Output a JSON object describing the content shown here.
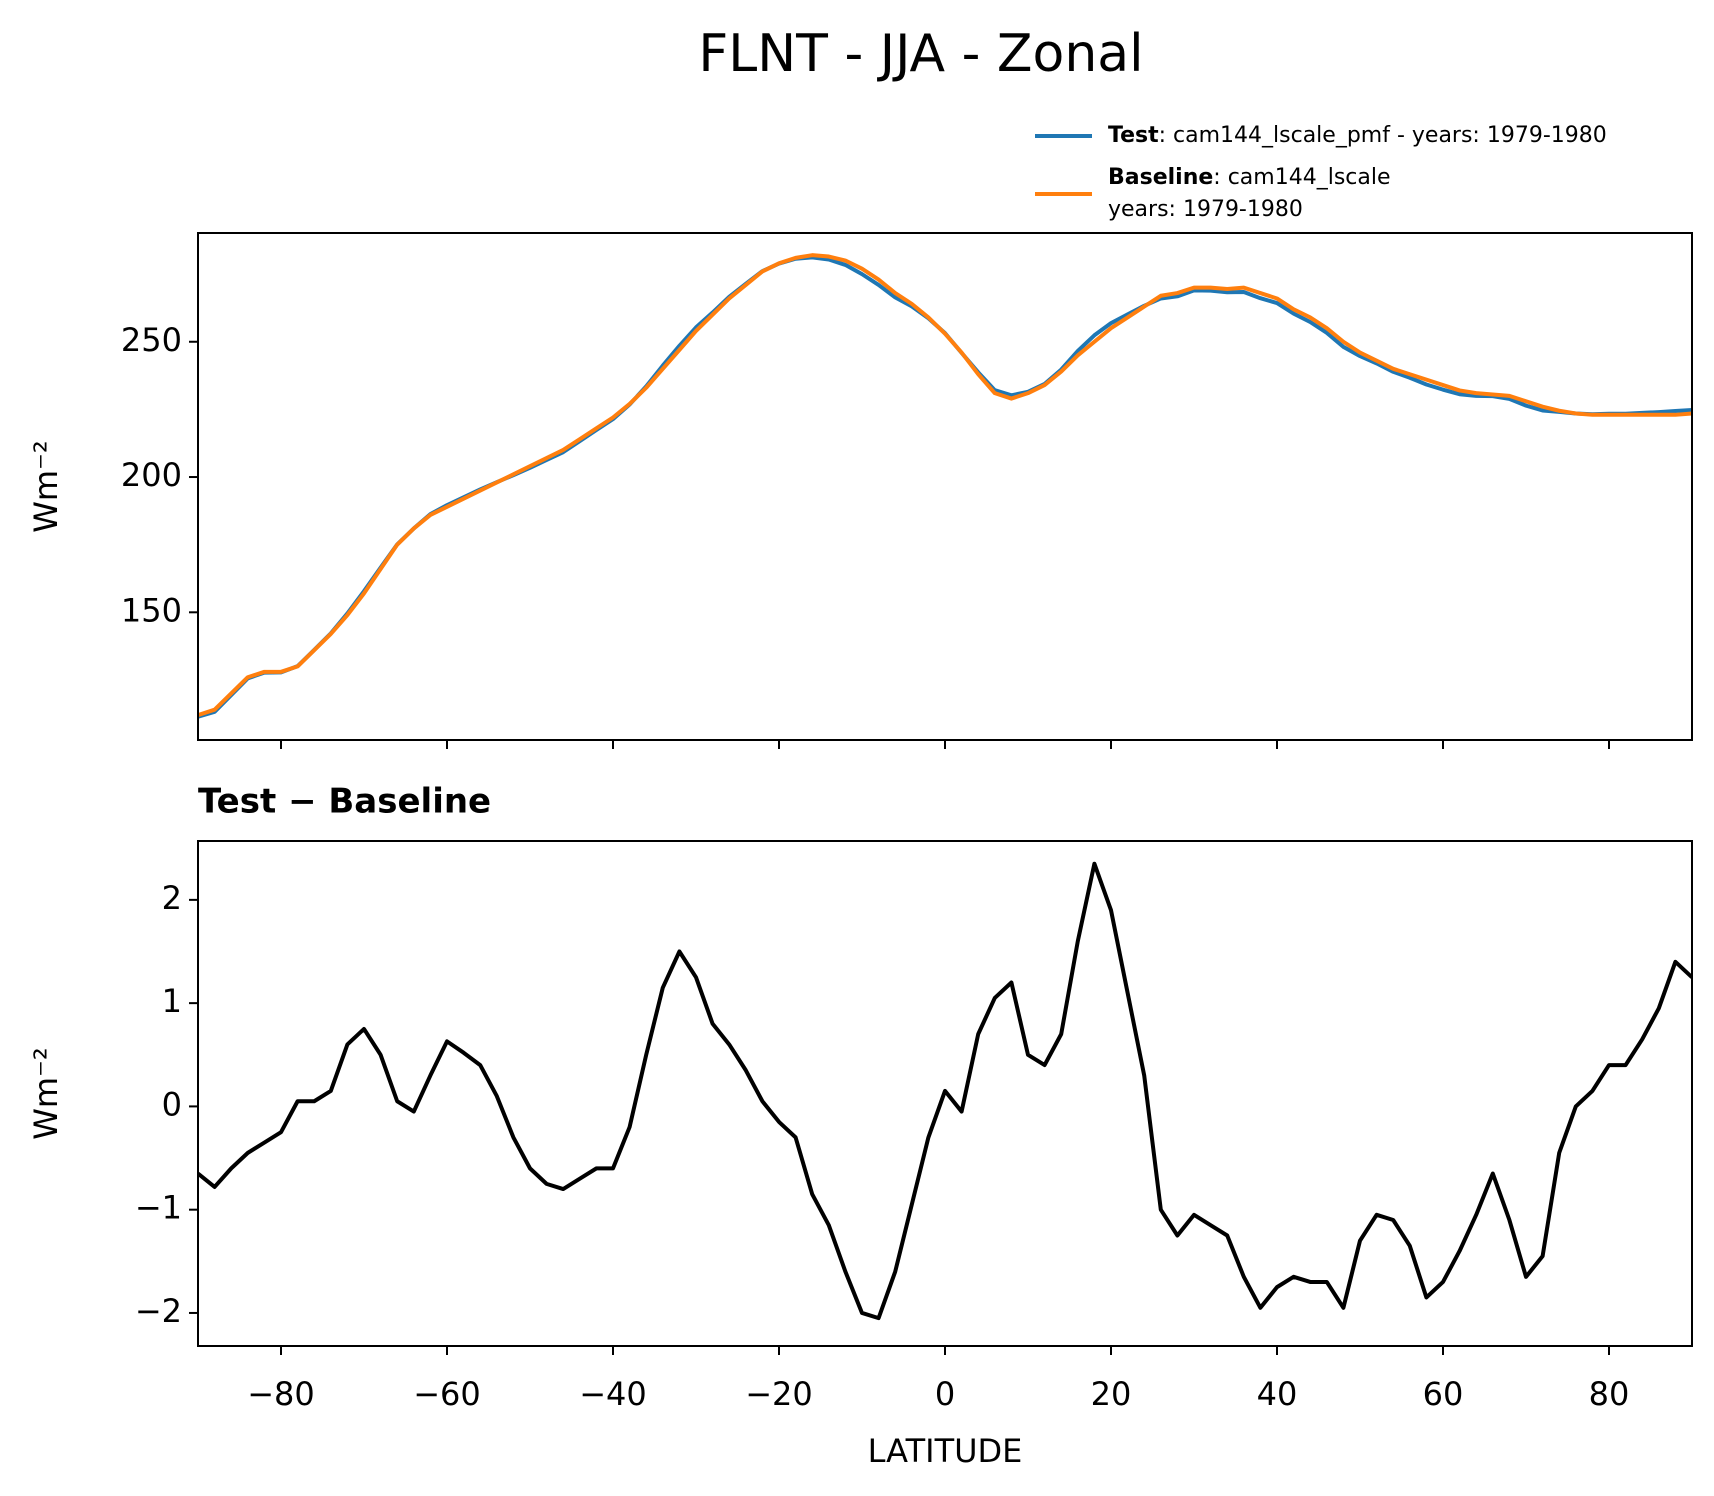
{
  "title": "FLNT - JJA - Zonal",
  "chart_data": [
    {
      "type": "line",
      "ylabel": "Wm⁻²",
      "xlim": [
        -90,
        90
      ],
      "ylim": [
        102.8,
        290.2
      ],
      "xticks": [
        -80,
        -60,
        -40,
        -20,
        0,
        20,
        40,
        60,
        80
      ],
      "yticks": [
        150,
        200,
        250
      ],
      "legend": "upper right",
      "x": [
        -90,
        -88,
        -86,
        -84,
        -82,
        -80,
        -78,
        -76,
        -74,
        -72,
        -70,
        -68,
        -66,
        -64,
        -62,
        -60,
        -58,
        -56,
        -54,
        -52,
        -50,
        -48,
        -46,
        -44,
        -42,
        -40,
        -38,
        -36,
        -34,
        -32,
        -30,
        -28,
        -26,
        -24,
        -22,
        -20,
        -18,
        -16,
        -14,
        -12,
        -10,
        -8,
        -6,
        -4,
        -2,
        0,
        2,
        4,
        6,
        8,
        10,
        12,
        14,
        16,
        18,
        20,
        22,
        24,
        26,
        28,
        30,
        32,
        34,
        36,
        38,
        40,
        42,
        44,
        46,
        48,
        50,
        52,
        54,
        56,
        58,
        60,
        62,
        64,
        66,
        68,
        70,
        72,
        74,
        76,
        78,
        80,
        82,
        84,
        86,
        88,
        90
      ],
      "series": [
        {
          "name": "Test",
          "label": [
            ": cam144_lscale_pmf - years: 1979-1980"
          ],
          "color": "#1f77b4",
          "values": [
            111.4,
            113.2,
            119.4,
            125.6,
            127.7,
            127.8,
            130.1,
            136.1,
            142.2,
            149.6,
            157.8,
            166.5,
            175.1,
            181.0,
            186.3,
            189.6,
            192.5,
            195.4,
            198.1,
            200.7,
            203.4,
            206.3,
            209.2,
            213.3,
            217.4,
            221.4,
            226.8,
            233.5,
            241.2,
            248.5,
            255.3,
            260.8,
            266.6,
            271.4,
            276.1,
            278.9,
            280.7,
            281.2,
            280.4,
            278.4,
            275,
            271.0,
            266.4,
            263.1,
            258.7,
            253.2,
            245.9,
            238.7,
            232.1,
            230.2,
            231.5,
            234.4,
            239.7,
            246.6,
            252.4,
            256.9,
            260.1,
            263.3,
            266,
            266.8,
            269.0,
            268.9,
            268.3,
            268.4,
            266.1,
            264.3,
            260.4,
            257.3,
            253.3,
            248.1,
            244.7,
            242.0,
            238.9,
            236.7,
            234.2,
            232.3,
            230.6,
            230.0,
            229.9,
            228.9,
            226.4,
            224.6,
            224.1,
            223.5,
            223.2,
            223.4,
            223.4,
            223.7,
            224.0,
            224.4,
            224.8
          ]
        },
        {
          "name": "Baseline",
          "label": [
            ": cam144_lscale",
            "years: 1979-1980"
          ],
          "color": "#ff7f0e",
          "values": [
            112,
            114,
            120,
            126,
            128,
            128,
            130,
            136,
            142,
            149,
            157,
            166,
            175,
            181,
            186,
            189,
            192,
            195,
            198,
            201,
            204,
            207,
            210,
            214,
            218,
            222,
            227,
            233,
            240,
            247,
            254,
            260,
            266,
            271,
            276,
            279,
            281,
            282,
            281.5,
            280,
            277,
            273,
            268,
            264,
            259,
            253,
            246,
            238,
            231,
            229,
            231,
            234,
            239,
            245,
            250,
            255,
            259,
            263,
            267,
            268,
            270,
            270,
            269.5,
            270,
            268,
            266,
            262,
            259,
            255,
            250,
            246,
            243,
            240,
            238,
            236,
            234,
            232,
            231,
            230.5,
            230,
            228,
            226,
            224.5,
            223.5,
            223,
            223,
            223,
            223,
            223,
            223,
            223.5
          ]
        }
      ]
    },
    {
      "type": "line",
      "title": "Test − Baseline",
      "ylabel": "Wm⁻²",
      "xlabel": "LATITUDE",
      "xlim": [
        -90,
        90
      ],
      "ylim": [
        -2.32,
        2.57
      ],
      "xticks": [
        {
          "value": -80,
          "label": "−80"
        },
        {
          "value": -60,
          "label": "−60"
        },
        {
          "value": -40,
          "label": "−40"
        },
        {
          "value": -20,
          "label": "−20"
        },
        0,
        20,
        40,
        60,
        80
      ],
      "yticks": [
        {
          "value": -2,
          "label": "−2"
        },
        {
          "value": -1,
          "label": "−1"
        },
        0,
        1,
        2
      ],
      "x": [
        -90,
        -88,
        -86,
        -84,
        -82,
        -80,
        -78,
        -76,
        -74,
        -72,
        -70,
        -68,
        -66,
        -64,
        -62,
        -60,
        -58,
        -56,
        -54,
        -52,
        -50,
        -48,
        -46,
        -44,
        -42,
        -40,
        -38,
        -36,
        -34,
        -32,
        -30,
        -28,
        -26,
        -24,
        -22,
        -20,
        -18,
        -16,
        -14,
        -12,
        -10,
        -8,
        -6,
        -4,
        -2,
        0,
        2,
        4,
        6,
        8,
        10,
        12,
        14,
        16,
        18,
        20,
        22,
        24,
        26,
        28,
        30,
        32,
        34,
        36,
        38,
        40,
        42,
        44,
        46,
        48,
        50,
        52,
        54,
        56,
        58,
        60,
        62,
        64,
        66,
        68,
        70,
        72,
        74,
        76,
        78,
        80,
        82,
        84,
        86,
        88,
        90
      ],
      "series": [
        {
          "color": "#000000",
          "values": [
            -0.65,
            -0.78,
            -0.6,
            -0.45,
            -0.35,
            -0.25,
            0.05,
            0.05,
            0.15,
            0.6,
            0.75,
            0.5,
            0.05,
            -0.05,
            0.3,
            0.63,
            0.52,
            0.4,
            0.1,
            -0.3,
            -0.6,
            -0.75,
            -0.8,
            -0.7,
            -0.6,
            -0.6,
            -0.2,
            0.5,
            1.15,
            1.5,
            1.25,
            0.8,
            0.6,
            0.35,
            0.05,
            -0.15,
            -0.3,
            -0.85,
            -1.15,
            -1.6,
            -2.0,
            -2.05,
            -1.6,
            -0.95,
            -0.3,
            0.15,
            -0.05,
            0.7,
            1.05,
            1.2,
            0.5,
            0.4,
            0.7,
            1.6,
            2.35,
            1.9,
            1.1,
            0.3,
            -1.0,
            -1.25,
            -1.05,
            -1.15,
            -1.25,
            -1.65,
            -1.95,
            -1.75,
            -1.65,
            -1.7,
            -1.7,
            -1.95,
            -1.3,
            -1.05,
            -1.1,
            -1.35,
            -1.85,
            -1.7,
            -1.4,
            -1.05,
            -0.65,
            -1.1,
            -1.65,
            -1.45,
            -0.45,
            0.0,
            0.15,
            0.4,
            0.4,
            0.65,
            0.95,
            1.4,
            1.25
          ]
        }
      ]
    }
  ]
}
